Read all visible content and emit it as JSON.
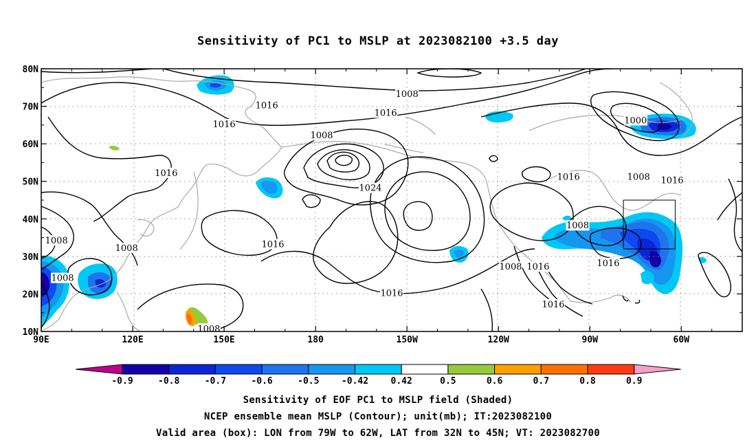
{
  "title": "Sensitivity of PC1 to MSLP at 2023082100 +3.5 day",
  "colors": {
    "neg_09": "#1400a8",
    "neg_08": "#0b26d6",
    "neg_07": "#0e48ef",
    "neg_06": "#1f74ee",
    "neg_05": "#1596f0",
    "neg_042": "#00c8f5",
    "pos_042": "#ffffff",
    "pos_05": "#95cb3a",
    "pos_06": "#ffa000",
    "pos_07": "#ff7000",
    "pos_08": "#ff3a14",
    "pos_09": "#ff0000",
    "under": "#c0008c",
    "over": "#f5a0c8",
    "coast": "#a8a8a8",
    "contour": "#000000"
  },
  "map": {
    "lon_ticks": [
      "90E",
      "120E",
      "150E",
      "180",
      "150W",
      "120W",
      "90W",
      "60W"
    ],
    "lat_ticks": [
      "80N",
      "70N",
      "60N",
      "50N",
      "40N",
      "30N",
      "20N",
      "10N"
    ],
    "contour_labels": [
      {
        "text": "1008",
        "lon": 210,
        "lat": 73
      },
      {
        "text": "1016",
        "lon": 164,
        "lat": 70
      },
      {
        "text": "1016",
        "lon": 203,
        "lat": 68
      },
      {
        "text": "1016",
        "lon": 150,
        "lat": 65
      },
      {
        "text": "1008",
        "lon": 182,
        "lat": 62
      },
      {
        "text": "1000",
        "lon": 285,
        "lat": 66
      },
      {
        "text": "1016",
        "lon": 131,
        "lat": 52
      },
      {
        "text": "1024",
        "lon": 198,
        "lat": 48
      },
      {
        "text": "1016",
        "lon": 263,
        "lat": 51
      },
      {
        "text": "1008",
        "lon": 286,
        "lat": 51
      },
      {
        "text": "1016",
        "lon": 297,
        "lat": 50
      },
      {
        "text": "1008",
        "lon": 95,
        "lat": 34
      },
      {
        "text": "1008",
        "lon": 118,
        "lat": 32
      },
      {
        "text": "1016",
        "lon": 166,
        "lat": 33
      },
      {
        "text": "1008",
        "lon": 266,
        "lat": 38
      },
      {
        "text": "1008",
        "lon": 97,
        "lat": 24
      },
      {
        "text": "1008",
        "lon": 244,
        "lat": 27
      },
      {
        "text": "1016",
        "lon": 253,
        "lat": 27
      },
      {
        "text": "1016",
        "lon": 276,
        "lat": 28
      },
      {
        "text": "1016",
        "lon": 205,
        "lat": 20
      },
      {
        "text": "1016",
        "lon": 258,
        "lat": 17
      },
      {
        "text": "1008",
        "lon": 145,
        "lat": 10.5
      }
    ],
    "valid_box": {
      "lon_min": 281,
      "lon_max": 298,
      "lat_min": 32,
      "lat_max": 45
    }
  },
  "colorbar": {
    "labels": [
      "-0.9",
      "-0.8",
      "-0.7",
      "-0.6",
      "-0.5",
      "-0.42",
      "0.42",
      "0.5",
      "0.6",
      "0.7",
      "0.8",
      "0.9"
    ]
  },
  "captions": {
    "line1": "Sensitivity of EOF PC1 to MSLP field (Shaded)",
    "line2": "NCEP ensemble mean MSLP (Contour); unit(mb); IT:2023082100",
    "line3": "Valid area (box): LON from 79W to 62W, LAT from 32N to 45N; VT: 2023082700"
  }
}
